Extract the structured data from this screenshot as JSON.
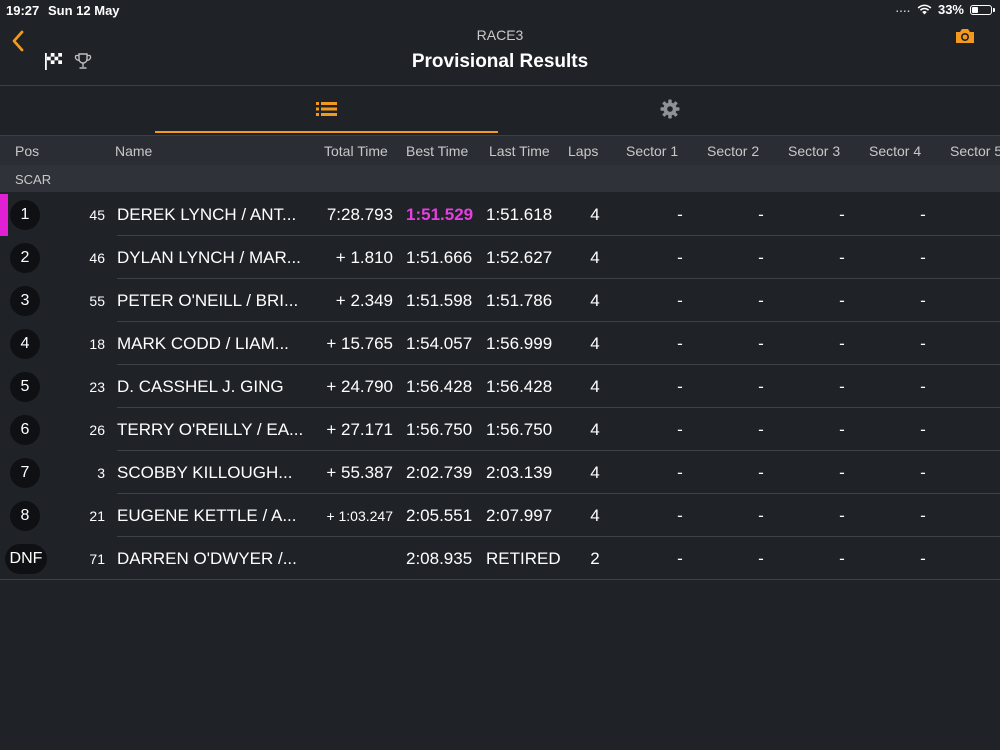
{
  "status_bar": {
    "time": "19:27",
    "date": "Sun 12 May",
    "signal": "....",
    "battery": "33%",
    "battery_level": 0.33
  },
  "header": {
    "subtitle": "RACE3",
    "title": "Provisional Results"
  },
  "columns": [
    "Pos",
    "Name",
    "Total Time",
    "Best Time",
    "Last Time",
    "Laps",
    "Sector 1",
    "Sector 2",
    "Sector 3",
    "Sector 4",
    "Sector 5"
  ],
  "group": "SCAR",
  "rows": [
    {
      "pos": "1",
      "num": "45",
      "name": "DEREK LYNCH / ANT...",
      "total": "7:28.793",
      "best": "1:51.529",
      "last": "1:51.618",
      "laps": "4",
      "s1": "-",
      "s2": "-",
      "s3": "-",
      "s4": "-"
    },
    {
      "pos": "2",
      "num": "46",
      "name": "DYLAN LYNCH / MAR...",
      "total": "+ 1.810",
      "best": "1:51.666",
      "last": "1:52.627",
      "laps": "4",
      "s1": "-",
      "s2": "-",
      "s3": "-",
      "s4": "-"
    },
    {
      "pos": "3",
      "num": "55",
      "name": "PETER O'NEILL / BRI...",
      "total": "+ 2.349",
      "best": "1:51.598",
      "last": "1:51.786",
      "laps": "4",
      "s1": "-",
      "s2": "-",
      "s3": "-",
      "s4": "-"
    },
    {
      "pos": "4",
      "num": "18",
      "name": "MARK CODD / LIAM...",
      "total": "+ 15.765",
      "best": "1:54.057",
      "last": "1:56.999",
      "laps": "4",
      "s1": "-",
      "s2": "-",
      "s3": "-",
      "s4": "-"
    },
    {
      "pos": "5",
      "num": "23",
      "name": "D. CASSHEL J. GING",
      "total": "+ 24.790",
      "best": "1:56.428",
      "last": "1:56.428",
      "laps": "4",
      "s1": "-",
      "s2": "-",
      "s3": "-",
      "s4": "-"
    },
    {
      "pos": "6",
      "num": "26",
      "name": "TERRY O'REILLY / EA...",
      "total": "+ 27.171",
      "best": "1:56.750",
      "last": "1:56.750",
      "laps": "4",
      "s1": "-",
      "s2": "-",
      "s3": "-",
      "s4": "-"
    },
    {
      "pos": "7",
      "num": "3",
      "name": "SCOBBY KILLOUGH...",
      "total": "+ 55.387",
      "best": "2:02.739",
      "last": "2:03.139",
      "laps": "4",
      "s1": "-",
      "s2": "-",
      "s3": "-",
      "s4": "-"
    },
    {
      "pos": "8",
      "num": "21",
      "name": "EUGENE KETTLE / A...",
      "total": "+ 1:03.247",
      "best": "2:05.551",
      "last": "2:07.997",
      "laps": "4",
      "s1": "-",
      "s2": "-",
      "s3": "-",
      "s4": "-"
    },
    {
      "pos": "DNF",
      "num": "71",
      "name": "DARREN O'DWYER /...",
      "total": "",
      "best": "2:08.935",
      "last": "RETIRED",
      "laps": "2",
      "s1": "-",
      "s2": "-",
      "s3": "-",
      "s4": "-"
    }
  ],
  "colors": {
    "accent": "#f39a1e",
    "fastest_lap": "#e43fe0",
    "background": "#1f2227"
  },
  "icons": {
    "back": "chevron-left-icon",
    "flag": "checkered-flag-icon",
    "trophy": "trophy-icon",
    "camera": "camera-icon",
    "list": "list-icon",
    "settings": "gear-icon"
  }
}
